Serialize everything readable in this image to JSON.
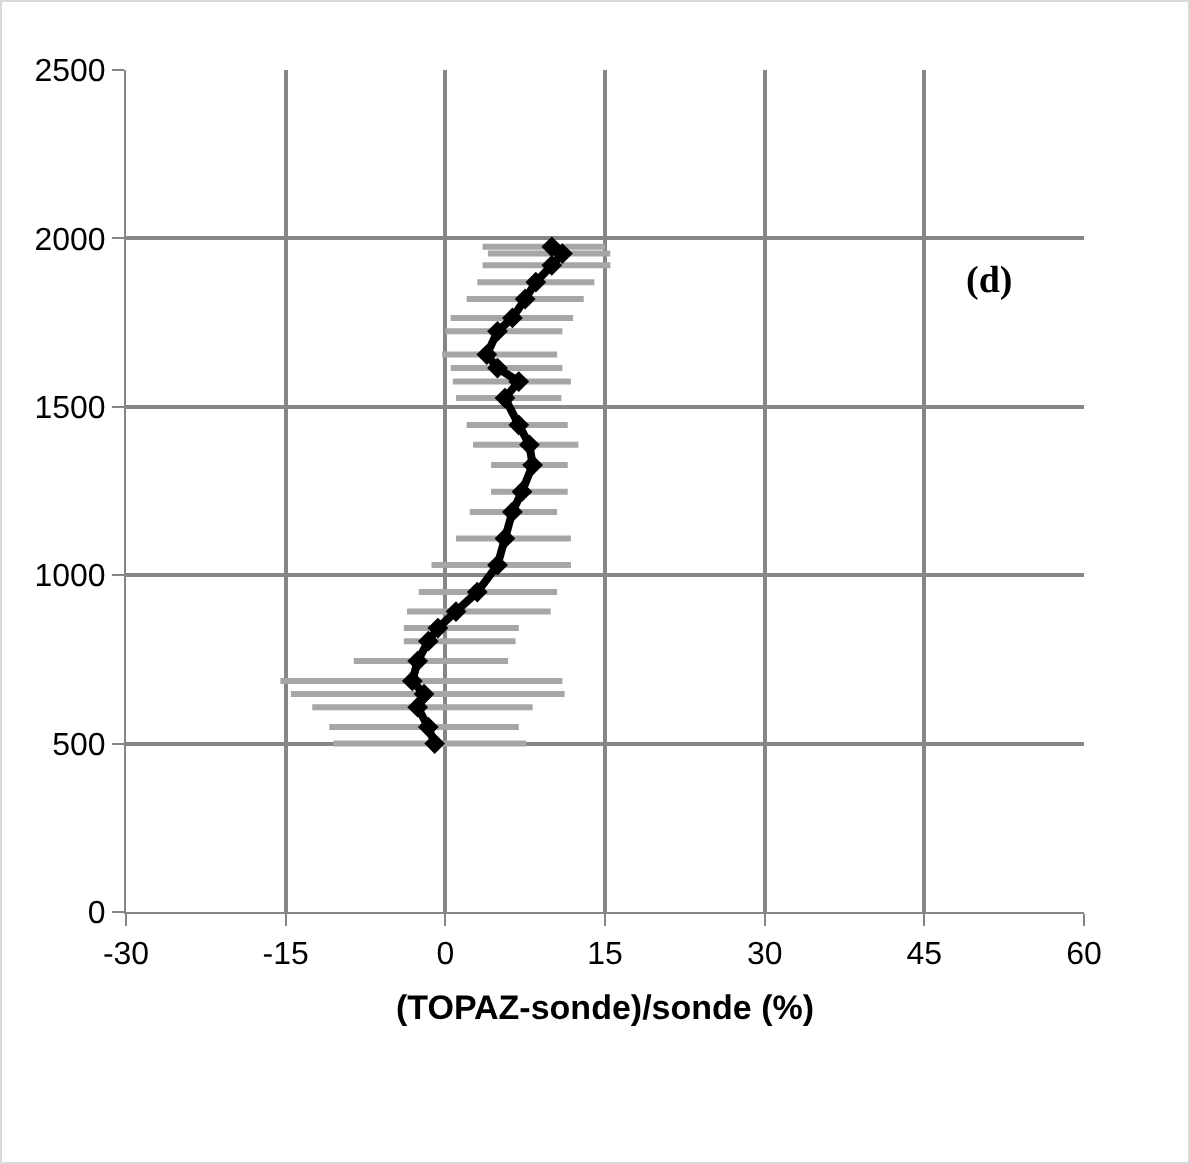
{
  "chart_data": {
    "type": "line",
    "xlabel": "(TOPAZ-sonde)/sonde (%)",
    "annotations": [
      "(d)"
    ],
    "xlim": [
      -30,
      60
    ],
    "xticks": [
      -30,
      -15,
      0,
      15,
      30,
      45,
      60
    ],
    "ylim": [
      0,
      2500
    ],
    "yticks": [
      0,
      500,
      1000,
      1500,
      2000,
      2500
    ],
    "grid": true,
    "marker": "diamond",
    "line_style": "solid",
    "series": [
      {
        "color": "#000000",
        "x": [
          -1,
          -1.6,
          -2.6,
          -2,
          -3.1,
          -2.6,
          -1.6,
          -0.7,
          1,
          3,
          4.9,
          5.6,
          6.3,
          7.2,
          8.2,
          7.9,
          6.9,
          5.6,
          6.9,
          4.9,
          3.9,
          4.9,
          6.3,
          7.5,
          8.5,
          10,
          11,
          10
        ],
        "values": [
          500,
          549,
          608,
          647,
          686,
          745,
          804,
          843,
          892,
          950,
          1030,
          1109,
          1188,
          1248,
          1327,
          1387,
          1446,
          1526,
          1575,
          1615,
          1655,
          1724,
          1764,
          1820,
          1870,
          1920,
          1955,
          1975
        ],
        "xerrors": [
          [
            -10.5,
            7.6
          ],
          [
            -10.9,
            6.9
          ],
          [
            -12.5,
            8.2
          ],
          [
            -14.5,
            11.2
          ],
          [
            -15.5,
            11
          ],
          [
            -8.6,
            5.9
          ],
          [
            -3.9,
            6.6
          ],
          [
            -3.9,
            6.9
          ],
          [
            -3.6,
            9.9
          ],
          [
            -2.5,
            10.5
          ],
          [
            -1.3,
            11.8
          ],
          [
            1,
            11.8
          ],
          [
            2.3,
            10.5
          ],
          [
            4.3,
            11.5
          ],
          [
            4.3,
            11.5
          ],
          [
            2.6,
            12.5
          ],
          [
            2,
            11.5
          ],
          [
            1,
            10.9
          ],
          [
            0.7,
            11.8
          ],
          [
            0.5,
            11
          ],
          [
            -0.3,
            10.5
          ],
          [
            0,
            11
          ],
          [
            0.5,
            12
          ],
          [
            2,
            13
          ],
          [
            3,
            14
          ],
          [
            3.5,
            15.5
          ],
          [
            4,
            15.5
          ],
          [
            3.5,
            15
          ]
        ]
      }
    ]
  }
}
